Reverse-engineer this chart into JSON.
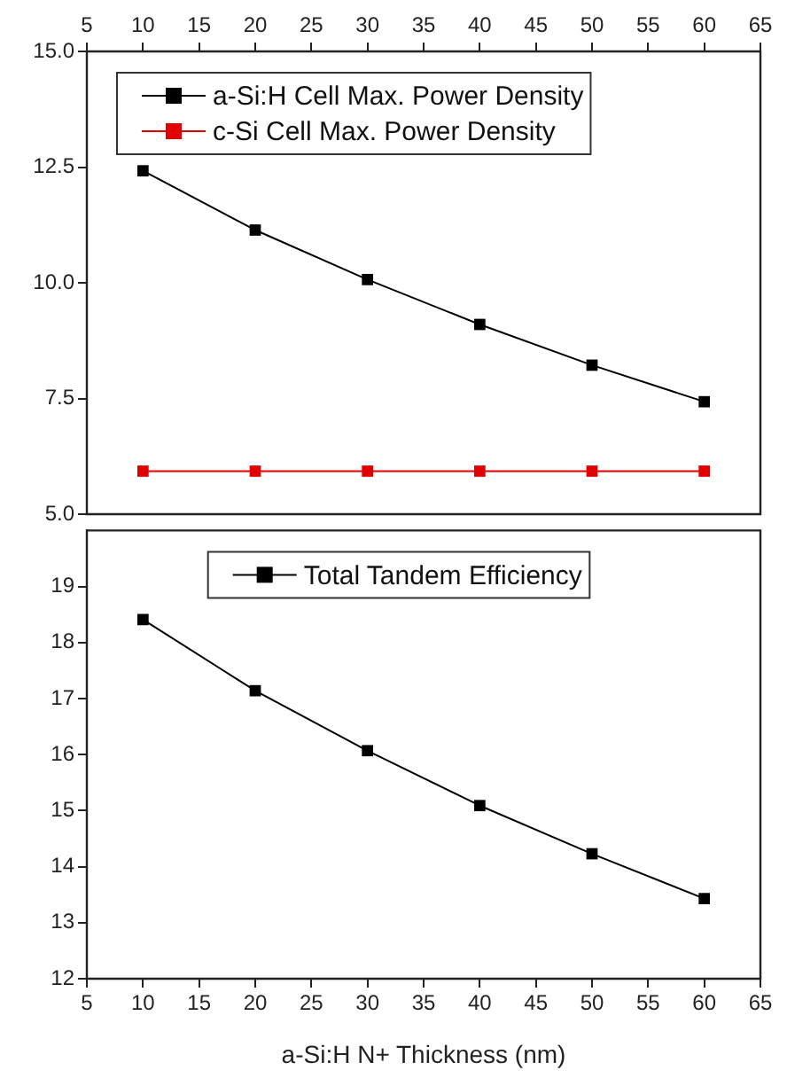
{
  "chart_data": [
    {
      "type": "line",
      "x": [
        10,
        20,
        30,
        40,
        50,
        60
      ],
      "series": [
        {
          "name": "a-Si:H Cell Max. Power Density",
          "color": "#000000",
          "values": [
            12.42,
            11.14,
            10.07,
            9.1,
            8.22,
            7.43
          ]
        },
        {
          "name": "c-Si Cell Max. Power Density",
          "color": "#e00000",
          "values": [
            5.93,
            5.93,
            5.93,
            5.93,
            5.93,
            5.93
          ]
        }
      ],
      "xlim": [
        5,
        65
      ],
      "xticks": [
        5,
        10,
        15,
        20,
        25,
        30,
        35,
        40,
        45,
        50,
        55,
        60,
        65
      ],
      "ylim": [
        5,
        15
      ],
      "yticks": [
        {
          "value": 5,
          "label": "5.0"
        },
        {
          "value": 7.5,
          "label": "7.5"
        },
        {
          "value": 10,
          "label": "10.0"
        },
        {
          "value": 12.5,
          "label": "12.5"
        },
        {
          "value": 15,
          "label": "15.0"
        }
      ],
      "legend": "top left",
      "marker": "square"
    },
    {
      "type": "line",
      "x": [
        10,
        20,
        30,
        40,
        50,
        60
      ],
      "xlabel": "a-Si:H N+ Thickness (nm)",
      "series": [
        {
          "name": "Total Tandem Efficiency",
          "color": "#000000",
          "values": [
            18.41,
            17.14,
            16.07,
            15.09,
            14.23,
            13.43
          ]
        }
      ],
      "xlim": [
        5,
        65
      ],
      "xticks": [
        5,
        10,
        15,
        20,
        25,
        30,
        35,
        40,
        45,
        50,
        55,
        60,
        65
      ],
      "ylim": [
        12,
        20
      ],
      "yticks": [
        12,
        13,
        14,
        15,
        16,
        17,
        18,
        19
      ],
      "legend": "top",
      "marker": "square"
    }
  ]
}
